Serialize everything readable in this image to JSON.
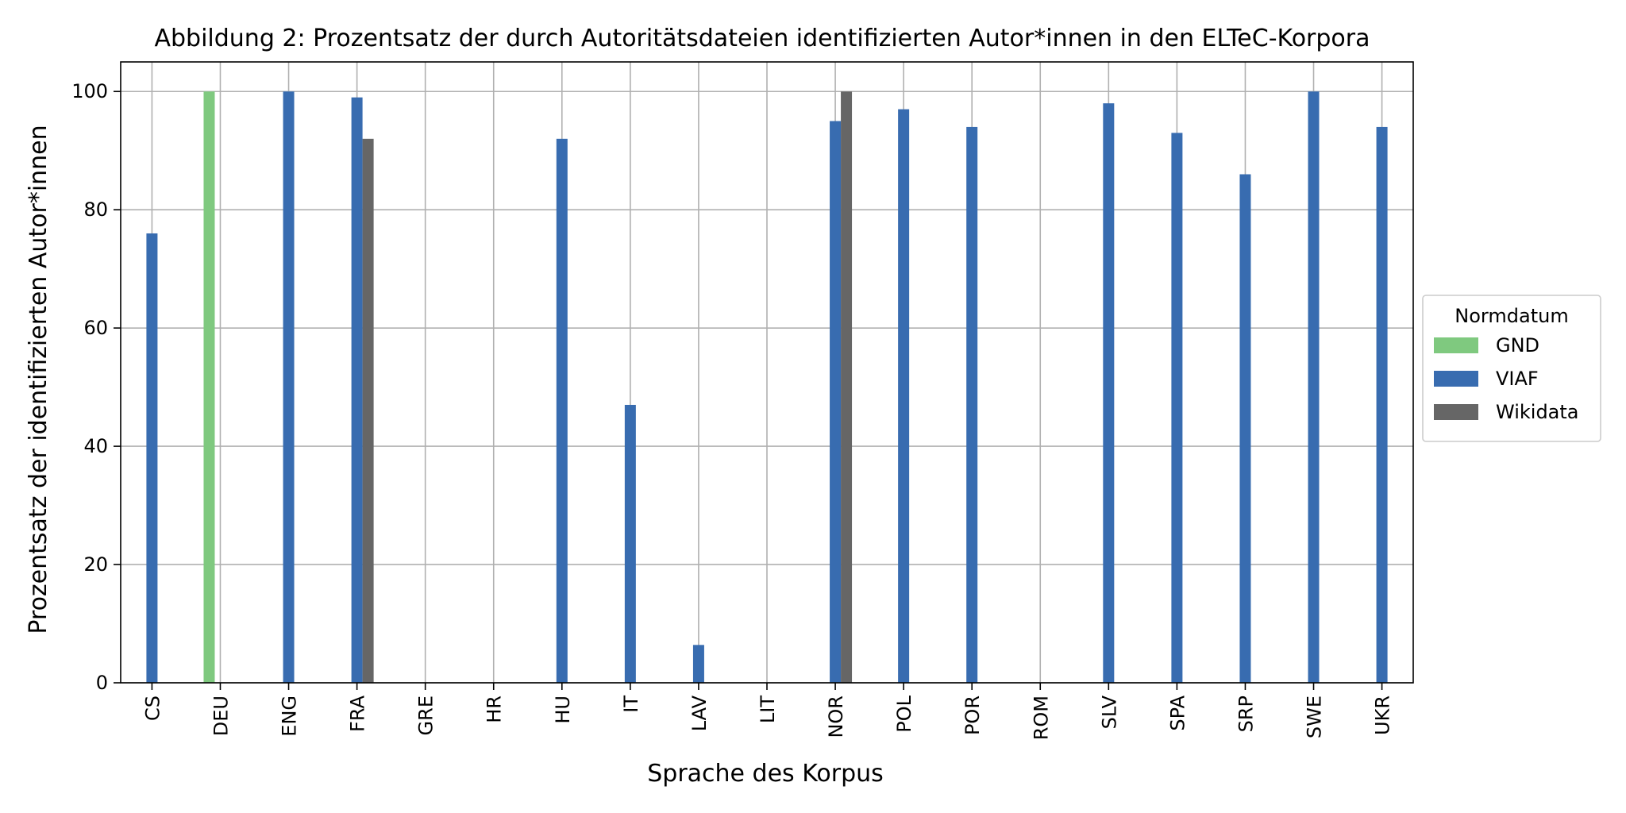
{
  "chart_data": {
    "type": "bar",
    "title": "Abbildung 2: Prozentsatz der durch Autoritätsdateien identifizierten Autor*innen in den ELTeC-Korpora",
    "xlabel": "Sprache des Korpus",
    "ylabel": "Prozentsatz der identifizierten Autor*innen",
    "ylim": [
      0,
      105
    ],
    "yticks": [
      "0",
      "20",
      "40",
      "60",
      "80",
      "100"
    ],
    "grid": true,
    "legend_position": "right",
    "legend_title": "Normdatum",
    "categories": [
      "CS",
      "DEU",
      "ENG",
      "FRA",
      "GRE",
      "HR",
      "HU",
      "IT",
      "LAV",
      "LIT",
      "NOR",
      "POL",
      "POR",
      "ROM",
      "SLV",
      "SPA",
      "SRP",
      "SWE",
      "UKR"
    ],
    "series": [
      {
        "name": "GND",
        "color": "#7fc97f",
        "values": [
          null,
          100,
          null,
          null,
          null,
          null,
          null,
          null,
          null,
          null,
          null,
          null,
          null,
          null,
          null,
          null,
          null,
          null,
          null
        ]
      },
      {
        "name": "VIAF",
        "color": "#386cb0",
        "values": [
          76,
          null,
          100,
          99,
          null,
          null,
          92,
          47,
          6.4,
          null,
          95,
          97,
          94,
          null,
          98,
          93,
          86,
          100,
          94
        ]
      },
      {
        "name": "Wikidata",
        "color": "#666666",
        "values": [
          null,
          null,
          null,
          92,
          null,
          null,
          null,
          null,
          null,
          null,
          100,
          null,
          null,
          null,
          null,
          null,
          null,
          null,
          null
        ]
      }
    ]
  }
}
